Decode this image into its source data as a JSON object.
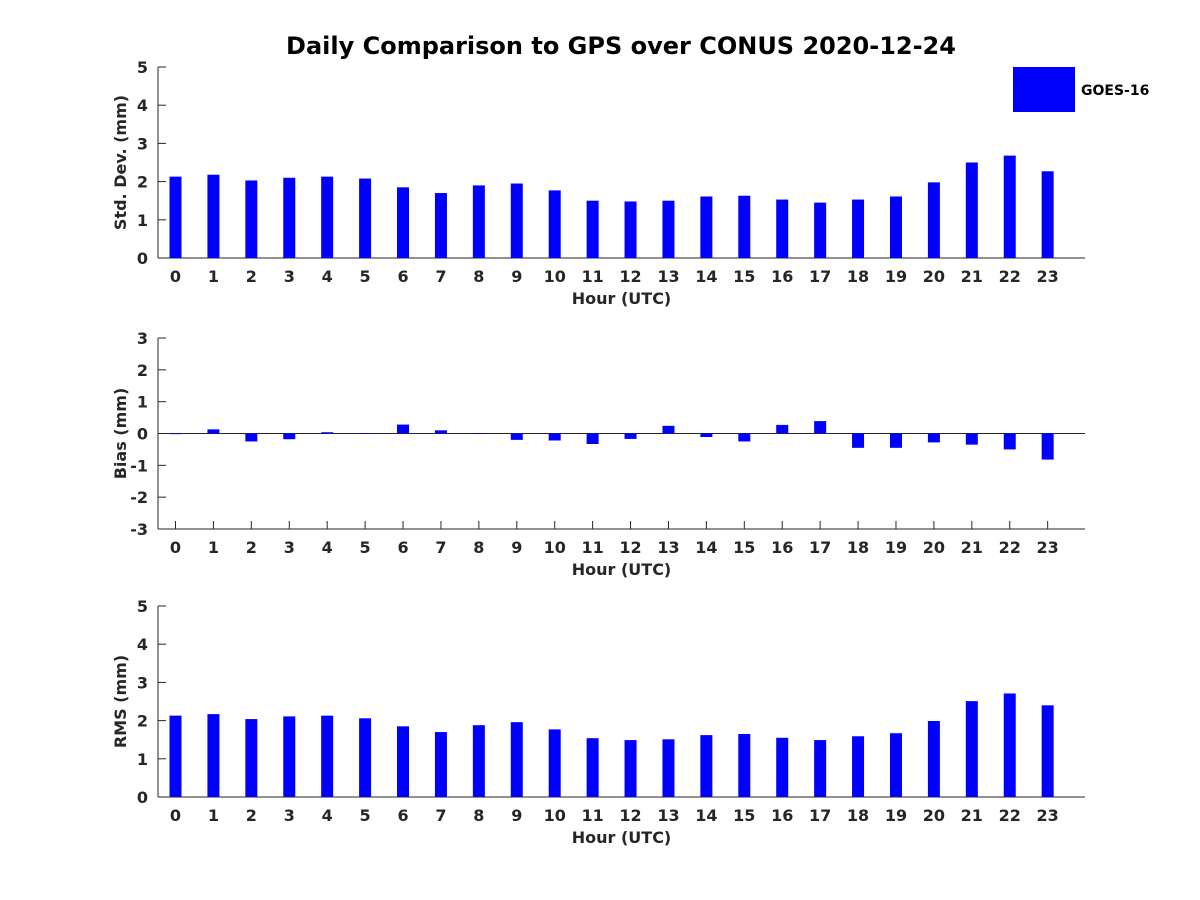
{
  "chart_data": [
    {
      "type": "bar",
      "title": "Daily Comparison to GPS over CONUS 2020-12-24",
      "xlabel": "Hour (UTC)",
      "ylabel": "Std. Dev. (mm)",
      "ylim": [
        0,
        5
      ],
      "yticks": [
        0,
        1,
        2,
        3,
        4,
        5
      ],
      "categories": [
        "0",
        "1",
        "2",
        "3",
        "4",
        "5",
        "6",
        "7",
        "8",
        "9",
        "10",
        "11",
        "12",
        "13",
        "14",
        "15",
        "16",
        "17",
        "18",
        "19",
        "20",
        "21",
        "22",
        "23"
      ],
      "series": [
        {
          "name": "GOES-16",
          "color": "#0000ff",
          "values": [
            2.13,
            2.18,
            2.03,
            2.1,
            2.13,
            2.08,
            1.85,
            1.7,
            1.9,
            1.95,
            1.77,
            1.5,
            1.48,
            1.5,
            1.61,
            1.63,
            1.53,
            1.45,
            1.53,
            1.61,
            1.98,
            2.5,
            2.68,
            2.27
          ]
        }
      ],
      "legend": "top-right"
    },
    {
      "type": "bar",
      "xlabel": "Hour (UTC)",
      "ylabel": "Bias (mm)",
      "ylim": [
        -3,
        3
      ],
      "yticks": [
        -3,
        -2,
        -1,
        0,
        1,
        2,
        3
      ],
      "categories": [
        "0",
        "1",
        "2",
        "3",
        "4",
        "5",
        "6",
        "7",
        "8",
        "9",
        "10",
        "11",
        "12",
        "13",
        "14",
        "15",
        "16",
        "17",
        "18",
        "19",
        "20",
        "21",
        "22",
        "23"
      ],
      "series": [
        {
          "name": "GOES-16",
          "color": "#0000ff",
          "values": [
            -0.02,
            0.13,
            -0.25,
            -0.18,
            0.04,
            -0.01,
            0.28,
            0.1,
            -0.01,
            -0.2,
            -0.22,
            -0.33,
            -0.17,
            0.24,
            -0.11,
            -0.25,
            0.27,
            0.39,
            -0.45,
            -0.45,
            -0.28,
            -0.35,
            -0.5,
            -0.82
          ]
        }
      ]
    },
    {
      "type": "bar",
      "xlabel": "Hour (UTC)",
      "ylabel": "RMS (mm)",
      "ylim": [
        0,
        5
      ],
      "yticks": [
        0,
        1,
        2,
        3,
        4,
        5
      ],
      "categories": [
        "0",
        "1",
        "2",
        "3",
        "4",
        "5",
        "6",
        "7",
        "8",
        "9",
        "10",
        "11",
        "12",
        "13",
        "14",
        "15",
        "16",
        "17",
        "18",
        "19",
        "20",
        "21",
        "22",
        "23"
      ],
      "series": [
        {
          "name": "GOES-16",
          "color": "#0000ff",
          "values": [
            2.13,
            2.17,
            2.04,
            2.11,
            2.13,
            2.06,
            1.85,
            1.7,
            1.88,
            1.96,
            1.77,
            1.54,
            1.49,
            1.51,
            1.62,
            1.65,
            1.55,
            1.49,
            1.59,
            1.67,
            1.99,
            2.51,
            2.71,
            2.4
          ]
        }
      ]
    }
  ]
}
